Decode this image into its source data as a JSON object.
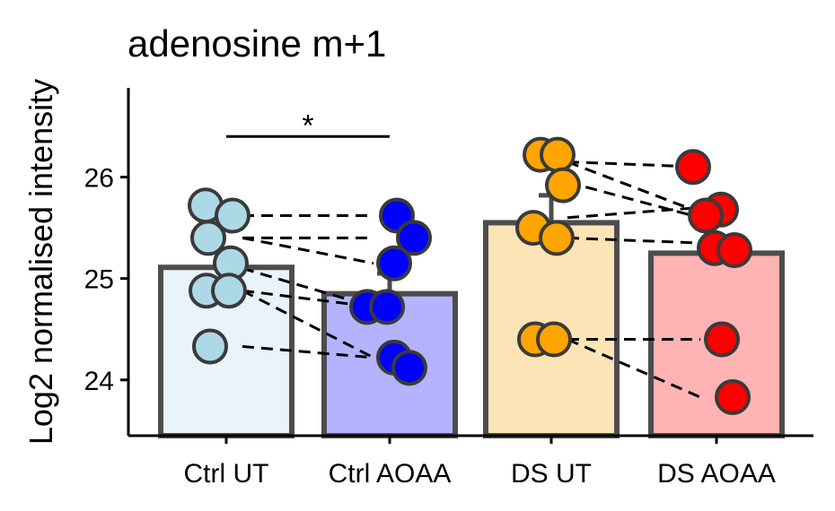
{
  "chart_data": {
    "type": "bar",
    "title": "adenosine m+1",
    "xlabel": "",
    "ylabel": "Log2 normalised intensity",
    "ylim": [
      23.45,
      26.88
    ],
    "yticks": [
      24,
      25,
      26
    ],
    "ytick_labels": [
      "24",
      "25",
      "26"
    ],
    "grid": false,
    "legend": "none",
    "categories": [
      "Ctrl UT",
      "Ctrl AOAA",
      "DS UT",
      "DS AOAA"
    ],
    "values": [
      25.11,
      24.85,
      25.55,
      25.25
    ],
    "error_upper": [
      25.11,
      25.05,
      25.82,
      25.25
    ],
    "bar_fill_colors": [
      "#e8f3fa",
      "#b3b3ff",
      "#fce4b6",
      "#ffb3b3"
    ],
    "point_fill_colors": [
      "#add8e6",
      "#0000ff",
      "#ffa500",
      "#ff0000"
    ],
    "bar_edge_color": "#4d4d4d",
    "points": [
      [
        25.72,
        25.62,
        25.4,
        25.15,
        24.88,
        24.88,
        24.33
      ],
      [
        25.62,
        25.4,
        25.15,
        24.72,
        24.72,
        24.22,
        24.12
      ],
      [
        26.22,
        26.22,
        25.92,
        25.5,
        25.4,
        24.4,
        24.4
      ],
      [
        26.1,
        25.68,
        25.62,
        25.3,
        25.28,
        24.4,
        23.83
      ]
    ],
    "pairs": [
      {
        "from_group": 0,
        "from_y": 25.62,
        "to_group": 1,
        "to_y": 25.62
      },
      {
        "from_group": 0,
        "from_y": 25.4,
        "to_group": 1,
        "to_y": 25.4
      },
      {
        "from_group": 0,
        "from_y": 25.4,
        "to_group": 1,
        "to_y": 25.15
      },
      {
        "from_group": 0,
        "from_y": 25.1,
        "to_group": 1,
        "to_y": 24.72
      },
      {
        "from_group": 0,
        "from_y": 24.88,
        "to_group": 1,
        "to_y": 24.72
      },
      {
        "from_group": 0,
        "from_y": 24.88,
        "to_group": 1,
        "to_y": 24.22
      },
      {
        "from_group": 0,
        "from_y": 24.33,
        "to_group": 1,
        "to_y": 24.22
      },
      {
        "from_group": 2,
        "from_y": 26.15,
        "to_group": 3,
        "to_y": 26.1
      },
      {
        "from_group": 2,
        "from_y": 26.15,
        "to_group": 3,
        "to_y": 25.65
      },
      {
        "from_group": 2,
        "from_y": 25.95,
        "to_group": 3,
        "to_y": 25.6
      },
      {
        "from_group": 2,
        "from_y": 25.6,
        "to_group": 3,
        "to_y": 25.7
      },
      {
        "from_group": 2,
        "from_y": 25.4,
        "to_group": 3,
        "to_y": 25.35
      },
      {
        "from_group": 2,
        "from_y": 24.4,
        "to_group": 3,
        "to_y": 24.4
      },
      {
        "from_group": 2,
        "from_y": 24.4,
        "to_group": 3,
        "to_y": 23.83
      }
    ],
    "significance": [
      {
        "groups": [
          0,
          1
        ],
        "y": 26.4,
        "label": "*"
      }
    ]
  }
}
